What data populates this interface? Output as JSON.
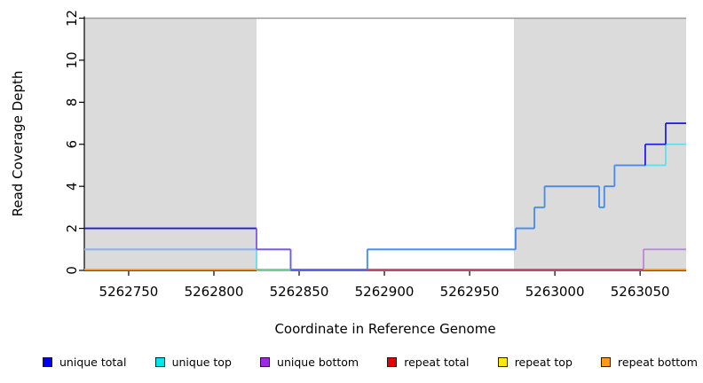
{
  "chart_data": {
    "type": "line",
    "subtype": "step-coverage",
    "title": "",
    "xlabel": "Coordinate in Reference Genome",
    "ylabel": "Read Coverage Depth",
    "xlim": [
      5262724,
      5263077
    ],
    "ylim": [
      0,
      12
    ],
    "xticks": [
      5262750,
      5262800,
      5262850,
      5262900,
      5262950,
      5263000,
      5263050
    ],
    "yticks": [
      0,
      2,
      4,
      6,
      8,
      10,
      12
    ],
    "grid": false,
    "background": "#FFFFFF",
    "axis_color": "#000000",
    "masked_regions": [
      {
        "from": 5262724,
        "to": 5262825,
        "color": "#DBDBDB"
      },
      {
        "from": 5262976,
        "to": 5263077,
        "color": "#DBDBDB"
      }
    ],
    "max_depth_line": {
      "y": 12,
      "color": "#9A9A9A"
    },
    "draw_order": [
      "repeat top",
      "repeat bottom",
      "repeat total",
      "unique top",
      "unique bottom",
      "unique total"
    ],
    "series": [
      {
        "name": "unique total",
        "color": "#1A1AE6",
        "points": [
          [
            5262724,
            2,
            "#1A1AE6"
          ],
          [
            5262825,
            1,
            "#8055E0"
          ],
          [
            5262845,
            0,
            "#6060E8"
          ],
          [
            5262890,
            1,
            "#4D8AF0"
          ],
          [
            5262977,
            2,
            "#4D8AF0"
          ],
          [
            5262988,
            3,
            "#4D8AF0"
          ],
          [
            5262994,
            4,
            "#4D8AF0"
          ],
          [
            5263026,
            3,
            "#4D8AF0"
          ],
          [
            5263029,
            4,
            "#4D8AF0"
          ],
          [
            5263035,
            5,
            "#4D8AF0"
          ],
          [
            5263053,
            6,
            "#2020E8"
          ],
          [
            5263065,
            7,
            "#2020E8"
          ],
          [
            5263077,
            7
          ]
        ]
      },
      {
        "name": "unique top",
        "color": "#5CE0EC",
        "points": [
          [
            5262724,
            1
          ],
          [
            5262825,
            0
          ],
          [
            5262890,
            1
          ],
          [
            5262977,
            2
          ],
          [
            5262988,
            3
          ],
          [
            5262994,
            4
          ],
          [
            5263026,
            3
          ],
          [
            5263029,
            4
          ],
          [
            5263035,
            5
          ],
          [
            5263065,
            6
          ],
          [
            5263077,
            6
          ]
        ]
      },
      {
        "name": "unique bottom",
        "color": "#8A4FE0",
        "points": [
          [
            5262724,
            1,
            "#9FA8E8"
          ],
          [
            5262845,
            0,
            "#8A4FE0"
          ],
          [
            5263052,
            1,
            "#BD85DC"
          ],
          [
            5263077,
            1
          ]
        ]
      },
      {
        "name": "repeat total",
        "color": "#E80000",
        "points": [
          [
            5262724,
            0
          ],
          [
            5263077,
            0
          ]
        ]
      },
      {
        "name": "repeat top",
        "color": "#FFE900",
        "points": [
          [
            5262724,
            0
          ],
          [
            5263077,
            0
          ]
        ]
      },
      {
        "name": "repeat bottom",
        "color": "#FF9912",
        "points": [
          [
            5262724,
            0
          ],
          [
            5263077,
            0
          ]
        ]
      }
    ],
    "baseline_segments": [
      {
        "from": 5262724,
        "to": 5262825,
        "color": "#FF9E2C"
      },
      {
        "from": 5262825,
        "to": 5262845,
        "color": "#7CC88C"
      },
      {
        "from": 5262845,
        "to": 5262890,
        "color": "#6060E8"
      },
      {
        "from": 5262890,
        "to": 5263052,
        "color": "#CE4A5E"
      },
      {
        "from": 5263052,
        "to": 5263077,
        "color": "#FF9E1A"
      }
    ]
  },
  "legend": {
    "items": [
      {
        "label": "unique total",
        "color": "#0000F5"
      },
      {
        "label": "unique top",
        "color": "#00E5EE"
      },
      {
        "label": "unique bottom",
        "color": "#A228E8"
      },
      {
        "label": "repeat total",
        "color": "#E80000"
      },
      {
        "label": "repeat top",
        "color": "#FFE900"
      },
      {
        "label": "repeat bottom",
        "color": "#FF9912"
      }
    ]
  }
}
